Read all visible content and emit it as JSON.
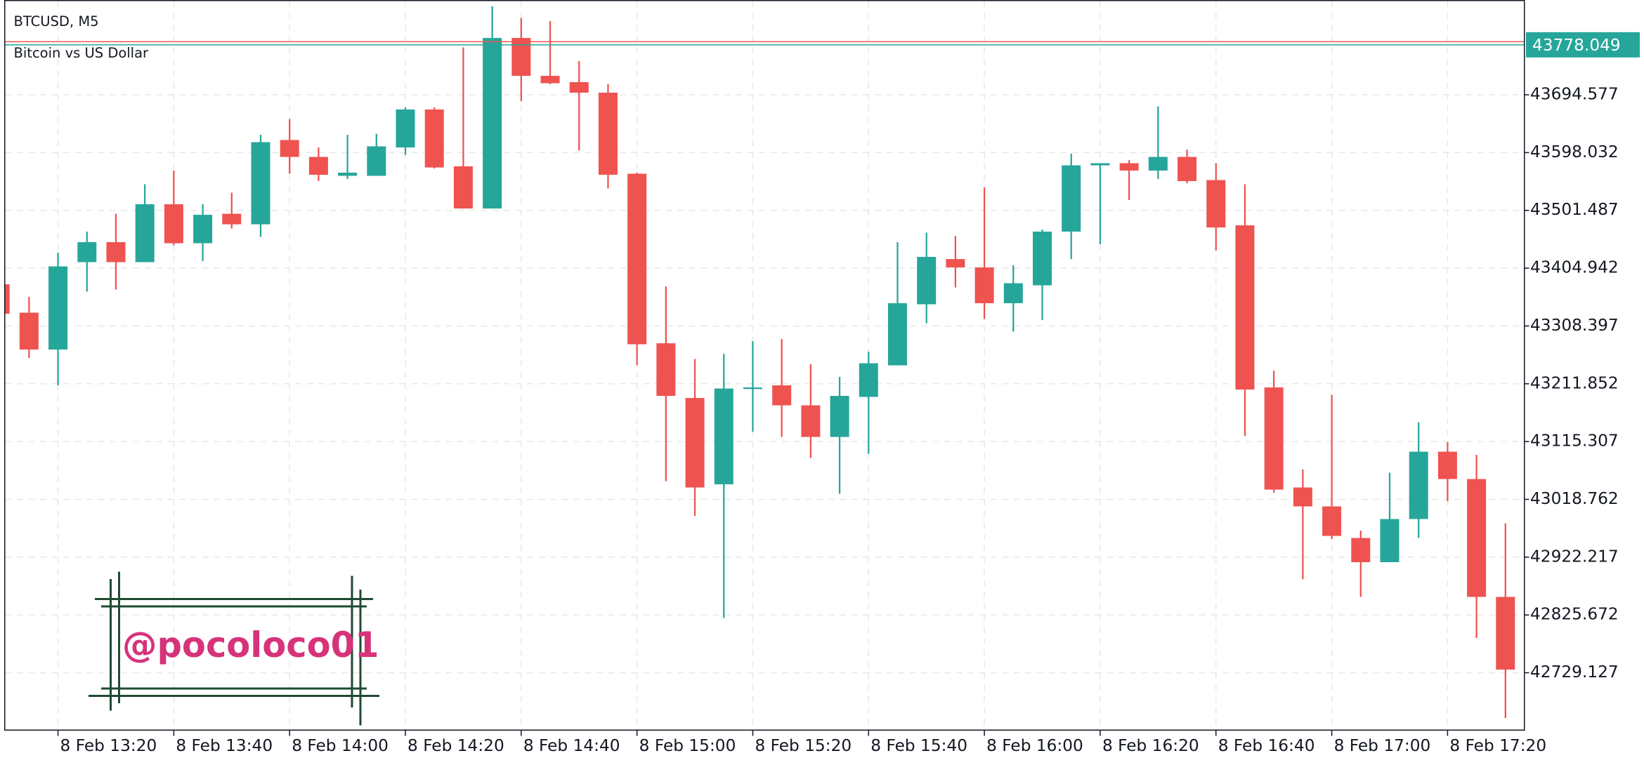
{
  "header": {
    "symbol": "BTCUSD, M5",
    "description": "Bitcoin vs US Dollar"
  },
  "watermark": "@pocoloco01",
  "chart_data": {
    "type": "candlestick",
    "up_color": "#26a69a",
    "down_color": "#ef5350",
    "grid": true,
    "last_price": 43778.049,
    "categories": [
      null,
      null,
      "8 Feb 13:20",
      null,
      null,
      null,
      "8 Feb 13:40",
      null,
      null,
      null,
      "8 Feb 14:00",
      null,
      null,
      null,
      "8 Feb 14:20",
      null,
      null,
      null,
      "8 Feb 14:40",
      null,
      null,
      null,
      "8 Feb 15:00",
      null,
      null,
      null,
      "8 Feb 15:20",
      null,
      null,
      null,
      "8 Feb 15:40",
      null,
      null,
      null,
      "8 Feb 16:00",
      null,
      null,
      null,
      "8 Feb 16:20",
      null,
      null,
      null,
      "8 Feb 16:40",
      null,
      null,
      null,
      "8 Feb 17:00",
      null,
      null,
      null,
      "8 Feb 17:20",
      null,
      null
    ],
    "open": [
      43378.0,
      43330.6,
      43269.0,
      43415.0,
      43448.4,
      43415.0,
      43511.7,
      43446.6,
      43495.8,
      43478.2,
      43619.0,
      43590.8,
      43559.2,
      43559.2,
      43606.6,
      43670.0,
      43575.0,
      43504.6,
      43789.5,
      43726.2,
      43715.7,
      43698.1,
      43562.7,
      43279.5,
      43188.1,
      43043.9,
      43203.9,
      43209.2,
      43175.8,
      43123.0,
      43189.9,
      43242.6,
      43344.6,
      43420.2,
      43406.2,
      43346.4,
      43376.3,
      43466.0,
      43576.7,
      43580.3,
      43568.0,
      43590.8,
      43552.1,
      43476.5,
      43205.7,
      43038.6,
      43007.0,
      42954.2,
      42913.8,
      42985.9,
      43098.4,
      43052.7,
      42855.8
    ],
    "high": [
      43386.8,
      43357.0,
      43430.8,
      43466.0,
      43495.8,
      43545.1,
      43568.0,
      43511.7,
      43531.0,
      43627.7,
      43654.1,
      43606.6,
      43627.7,
      43629.5,
      43673.5,
      43673.5,
      43773.7,
      43842.3,
      43823.0,
      43817.7,
      43750.9,
      43712.2,
      43564.5,
      43374.5,
      43253.2,
      43261.9,
      43283.0,
      43286.6,
      43244.4,
      43223.3,
      43265.5,
      43448.4,
      43464.2,
      43458.9,
      43539.8,
      43409.7,
      43469.5,
      43596.1,
      43580.3,
      43585.5,
      43675.2,
      43603.1,
      43580.3,
      43545.1,
      43233.8,
      43068.5,
      43193.4,
      42966.5,
      43063.3,
      43147.6,
      43114.3,
      43093.1,
      42978.8
    ],
    "low": [
      43325.3,
      43254.9,
      43209.2,
      43365.7,
      43369.2,
      43415.0,
      43443.1,
      43416.7,
      43471.2,
      43457.2,
      43562.7,
      43550.4,
      43553.9,
      43559.2,
      43594.3,
      43571.5,
      43504.6,
      43504.6,
      43684.0,
      43712.2,
      43601.4,
      43538.1,
      43242.6,
      43049.2,
      42991.2,
      42820.6,
      43131.8,
      43123.0,
      43087.9,
      43028.1,
      43094.9,
      43242.6,
      43313.0,
      43372.8,
      43320.0,
      43298.9,
      43318.2,
      43420.2,
      43444.9,
      43518.7,
      43553.9,
      43546.8,
      43434.3,
      43124.8,
      43029.9,
      42885.6,
      42952.5,
      42855.8,
      42913.8,
      42954.2,
      43015.8,
      42787.2,
      42653.5
    ],
    "close": [
      43328.8,
      43269.0,
      43407.9,
      43448.4,
      43415.0,
      43511.7,
      43446.6,
      43494.1,
      43478.2,
      43615.4,
      43590.8,
      43560.9,
      43564.5,
      43608.4,
      43670.0,
      43573.2,
      43504.6,
      43789.5,
      43726.2,
      43713.9,
      43698.1,
      43560.9,
      43277.8,
      43191.6,
      43038.6,
      43203.9,
      43205.7,
      43175.8,
      43123.0,
      43191.6,
      43246.1,
      43346.4,
      43423.8,
      43406.2,
      43346.4,
      43379.8,
      43466.0,
      43576.7,
      43580.3,
      43568.0,
      43590.8,
      43550.4,
      43473.0,
      43202.2,
      43035.1,
      43007.0,
      42957.7,
      42913.8,
      42985.9,
      43098.4,
      43052.7,
      42855.8,
      42734.4
    ],
    "ylim": [
      42634.2,
      43852.9
    ],
    "yticks": [
      43694.577,
      43598.032,
      43501.487,
      43404.942,
      43308.397,
      43211.852,
      43115.307,
      43018.762,
      42922.217,
      42825.672,
      42729.127
    ]
  }
}
